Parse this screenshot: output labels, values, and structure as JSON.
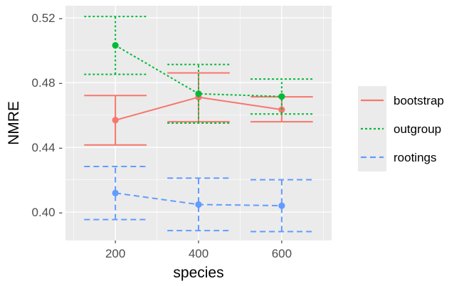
{
  "chart_data": {
    "type": "line",
    "xlabel": "species",
    "ylabel": "NMRE",
    "xlim": [
      80,
      720
    ],
    "ylim": [
      0.3825,
      0.5275
    ],
    "x_ticks": [
      200,
      400,
      600
    ],
    "x_tick_labels": [
      "200",
      "400",
      "600"
    ],
    "y_ticks": [
      0.4,
      0.44,
      0.48,
      0.52
    ],
    "y_tick_labels": [
      "0.40 -",
      "0.44 -",
      "0.48 -",
      "0.52 -"
    ],
    "grid": true,
    "legend_position": "right",
    "series": [
      {
        "name": "bootstrap",
        "color": "#F8766D",
        "dash": "solid",
        "x": [
          200,
          400,
          600
        ],
        "y": [
          0.4568,
          0.471,
          0.4633
        ],
        "ymin": [
          0.4415,
          0.4558,
          0.4558
        ],
        "ymax": [
          0.472,
          0.486,
          0.4712
        ]
      },
      {
        "name": "outgroup",
        "color": "#00BA38",
        "dash": "dotted",
        "x": [
          200,
          400,
          600
        ],
        "y": [
          0.503,
          0.4731,
          0.4714
        ],
        "ymin": [
          0.4851,
          0.455,
          0.4606
        ],
        "ymax": [
          0.5208,
          0.4912,
          0.4822
        ]
      },
      {
        "name": "rootings",
        "color": "#619CFF",
        "dash": "dashed",
        "x": [
          200,
          400,
          600
        ],
        "y": [
          0.4118,
          0.4047,
          0.404
        ],
        "ymin": [
          0.3954,
          0.3886,
          0.388
        ],
        "ymax": [
          0.4282,
          0.421,
          0.42
        ]
      }
    ]
  }
}
